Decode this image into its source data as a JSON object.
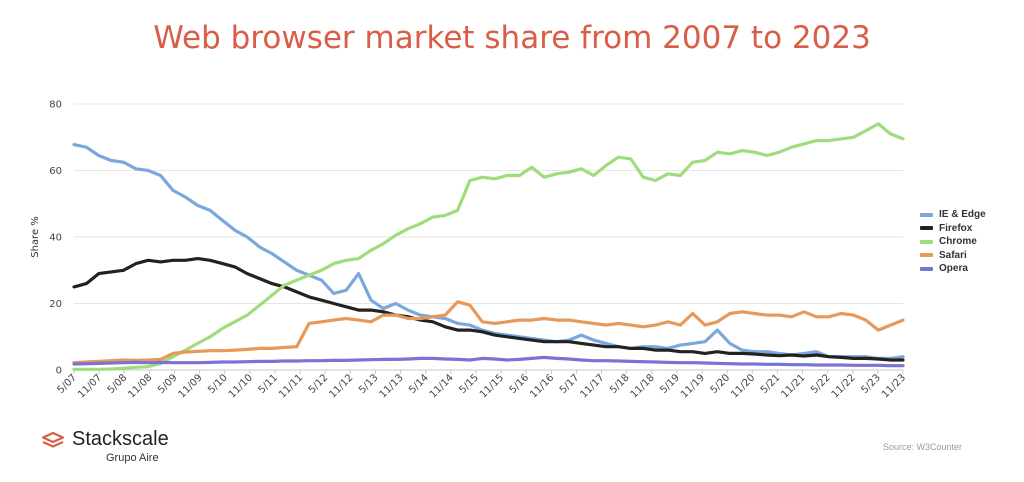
{
  "title": "Web browser market share from 2007 to 2023",
  "brand": {
    "name": "Stackscale",
    "subtitle": "Grupo Aire"
  },
  "source": "Source: W3Counter",
  "chart_data": {
    "type": "line",
    "ylabel": "Share %",
    "xlabel": "",
    "ylim": [
      0,
      80
    ],
    "yticks": [
      0,
      20,
      40,
      60,
      80
    ],
    "grid": true,
    "legend_position": "right",
    "x_tick_labels": [
      "5/07",
      "11/07",
      "5/08",
      "11/08",
      "5/09",
      "11/09",
      "5/10",
      "11/10",
      "5/11",
      "11/11",
      "5/12",
      "11/12",
      "5/13",
      "11/13",
      "5/14",
      "11/14",
      "5/15",
      "11/15",
      "5/16",
      "11/16",
      "5/17",
      "11/17",
      "5/18",
      "11/18",
      "5/19",
      "11/19",
      "5/20",
      "11/20",
      "5/21",
      "11/21",
      "5/22",
      "11/22",
      "5/23",
      "11/23"
    ],
    "series": [
      {
        "name": "IE & Edge",
        "color": "#7aa8dc",
        "values": [
          67.8,
          67.0,
          64.5,
          63.0,
          62.5,
          60.5,
          60.0,
          58.5,
          54.0,
          52.0,
          49.5,
          48.0,
          45.0,
          42.0,
          40.0,
          37.0,
          35.0,
          32.5,
          30.0,
          28.5,
          27.0,
          23.0,
          24.0,
          29.0,
          21.0,
          18.5,
          20.0,
          18.0,
          16.5,
          16.0,
          15.5,
          14.0,
          13.5,
          12.0,
          11.0,
          10.5,
          10.0,
          9.5,
          9.0,
          8.5,
          9.0,
          10.5,
          9.0,
          8.0,
          7.0,
          6.5,
          7.0,
          7.0,
          6.5,
          7.5,
          8.0,
          8.5,
          12.0,
          8.0,
          6.0,
          5.5,
          5.5,
          5.0,
          4.5,
          5.0,
          5.5,
          4.0,
          4.0,
          4.0,
          4.0,
          3.5,
          3.5,
          4.0
        ]
      },
      {
        "name": "Firefox",
        "color": "#222222",
        "values": [
          25.0,
          26.0,
          29.0,
          29.5,
          30.0,
          32.0,
          33.0,
          32.5,
          33.0,
          33.0,
          33.5,
          33.0,
          32.0,
          31.0,
          29.0,
          27.5,
          26.0,
          25.0,
          23.5,
          22.0,
          21.0,
          20.0,
          19.0,
          18.0,
          18.0,
          17.5,
          16.5,
          16.0,
          15.0,
          14.5,
          13.0,
          12.0,
          12.0,
          11.5,
          10.5,
          10.0,
          9.5,
          9.0,
          8.5,
          8.5,
          8.5,
          8.0,
          7.5,
          7.0,
          7.0,
          6.5,
          6.5,
          6.0,
          6.0,
          5.5,
          5.5,
          5.0,
          5.5,
          5.0,
          5.0,
          4.8,
          4.5,
          4.3,
          4.5,
          4.2,
          4.5,
          4.0,
          3.8,
          3.5,
          3.5,
          3.3,
          3.0,
          3.0
        ]
      },
      {
        "name": "Chrome",
        "color": "#9fdc7c",
        "values": [
          0.2,
          0.2,
          0.2,
          0.3,
          0.5,
          0.8,
          1.0,
          2.0,
          4.0,
          6.0,
          8.0,
          10.0,
          12.5,
          14.5,
          16.5,
          19.5,
          22.5,
          25.5,
          27.0,
          28.5,
          30.0,
          32.0,
          33.0,
          33.5,
          36.0,
          38.0,
          40.5,
          42.5,
          44.0,
          46.0,
          46.5,
          48.0,
          57.0,
          58.0,
          57.5,
          58.5,
          58.5,
          61.0,
          58.0,
          59.0,
          59.5,
          60.5,
          58.5,
          61.5,
          64.0,
          63.5,
          58.0,
          57.0,
          59.0,
          58.5,
          62.5,
          63.0,
          65.5,
          65.0,
          66.0,
          65.5,
          64.5,
          65.5,
          67.0,
          68.0,
          69.0,
          69.0,
          69.5,
          70.0,
          72.0,
          74.0,
          71.0,
          69.5
        ]
      },
      {
        "name": "Safari",
        "color": "#e6995a",
        "values": [
          2.2,
          2.4,
          2.6,
          2.8,
          3.0,
          2.9,
          3.0,
          3.2,
          5.0,
          5.4,
          5.6,
          5.8,
          5.8,
          6.0,
          6.2,
          6.5,
          6.5,
          6.8,
          7.0,
          14.0,
          14.5,
          15.0,
          15.5,
          15.0,
          14.5,
          16.5,
          16.5,
          15.5,
          15.5,
          16.0,
          16.5,
          20.5,
          19.5,
          14.5,
          14.0,
          14.5,
          15.0,
          15.0,
          15.5,
          15.0,
          15.0,
          14.5,
          14.0,
          13.5,
          14.0,
          13.5,
          13.0,
          13.5,
          14.5,
          13.5,
          17.0,
          13.5,
          14.5,
          17.0,
          17.5,
          17.0,
          16.5,
          16.5,
          16.0,
          17.5,
          16.0,
          16.0,
          17.0,
          16.5,
          15.0,
          12.0,
          13.5,
          15.0
        ]
      },
      {
        "name": "Opera",
        "color": "#7a72d4",
        "values": [
          1.8,
          1.9,
          2.0,
          2.1,
          2.2,
          2.3,
          2.2,
          2.3,
          2.2,
          2.2,
          2.2,
          2.3,
          2.4,
          2.4,
          2.5,
          2.6,
          2.6,
          2.7,
          2.7,
          2.8,
          2.8,
          2.9,
          2.9,
          3.0,
          3.1,
          3.2,
          3.2,
          3.3,
          3.5,
          3.5,
          3.3,
          3.2,
          3.0,
          3.5,
          3.3,
          3.0,
          3.2,
          3.5,
          3.8,
          3.5,
          3.3,
          3.0,
          2.8,
          2.8,
          2.7,
          2.6,
          2.5,
          2.4,
          2.3,
          2.2,
          2.2,
          2.1,
          2.0,
          1.9,
          1.8,
          1.8,
          1.7,
          1.7,
          1.6,
          1.6,
          1.5,
          1.5,
          1.5,
          1.4,
          1.4,
          1.4,
          1.3,
          1.3
        ]
      }
    ]
  }
}
